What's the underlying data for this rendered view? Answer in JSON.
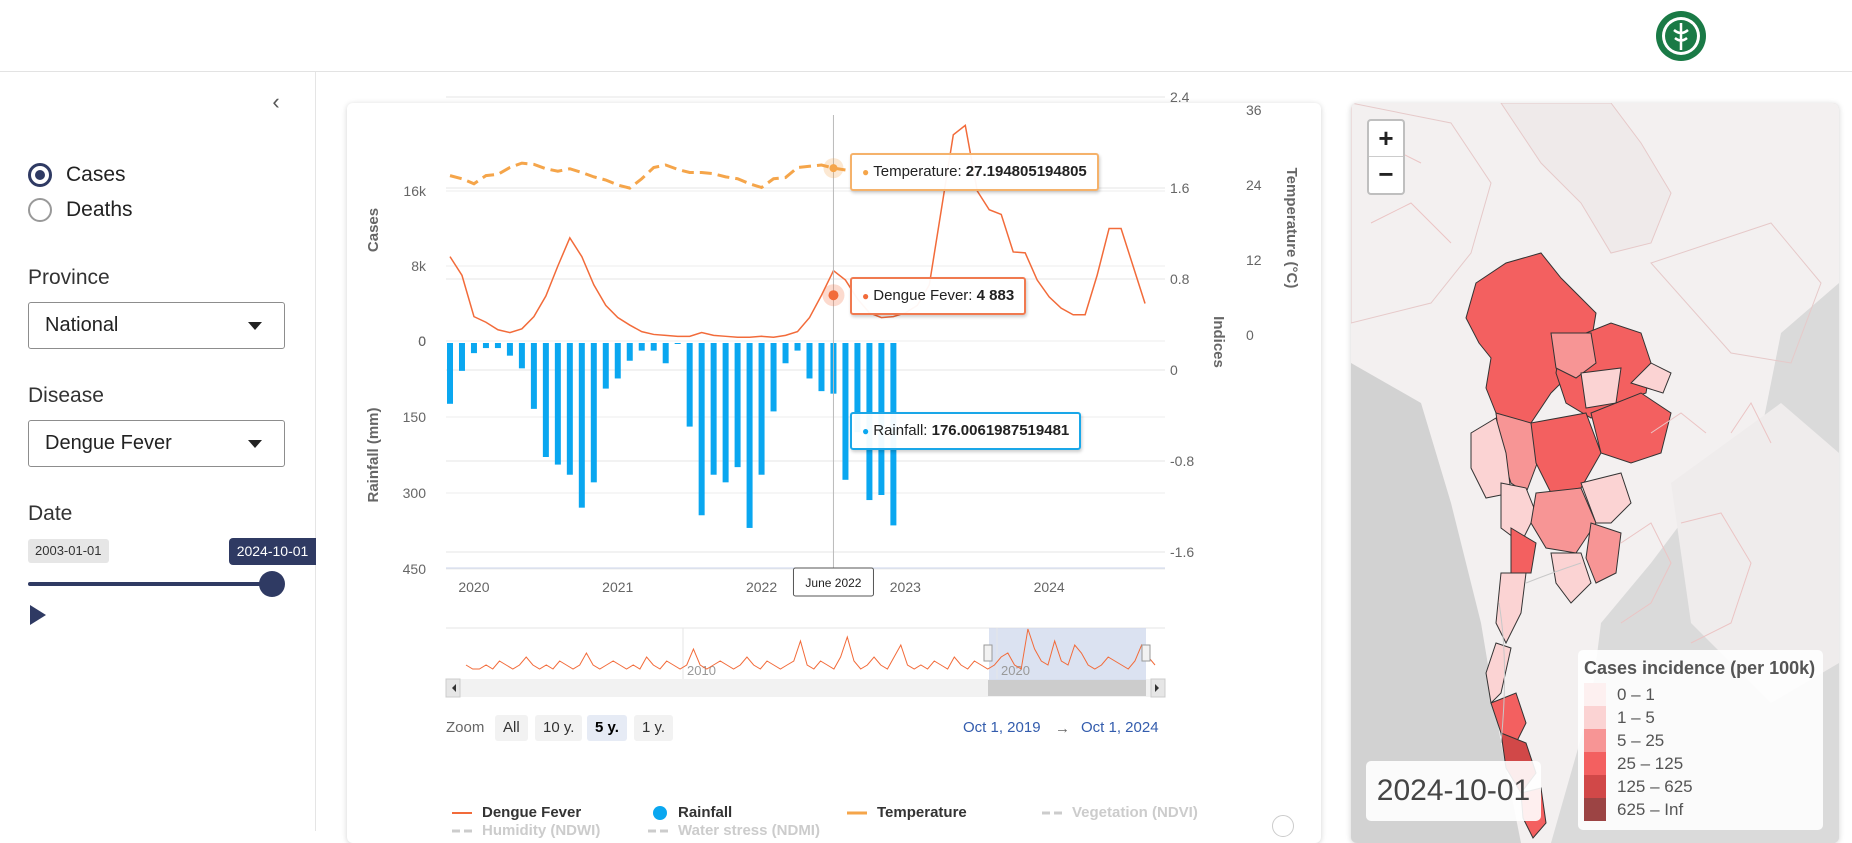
{
  "sidebar": {
    "measure_options": [
      {
        "label": "Cases",
        "selected": true
      },
      {
        "label": "Deaths",
        "selected": false
      }
    ],
    "province_label": "Province",
    "province_value": "National",
    "disease_label": "Disease",
    "disease_value": "Dengue Fever",
    "date_label": "Date",
    "date_min": "2003-01-01",
    "date_current": "2024-10-01",
    "slider_fraction": 1.0
  },
  "chart": {
    "zoom_label": "Zoom",
    "zoom_buttons": [
      "All",
      "10 y.",
      "5 y.",
      "1 y."
    ],
    "zoom_selected": "5 y.",
    "range_from": "Oct 1, 2019",
    "range_arrow": "→",
    "range_to": "Oct 1, 2024",
    "navigator_labels": [
      "2010",
      "2020"
    ],
    "tooltip_temperature": {
      "label": "Temperature: ",
      "value": "27.194805194805"
    },
    "tooltip_dengue": {
      "label": "Dengue Fever: ",
      "value": "4 883"
    },
    "tooltip_rainfall": {
      "label": "Rainfall: ",
      "value": "176.0061987519481"
    },
    "crosshair_label": "June 2022",
    "legend": [
      {
        "label": "Dengue Fever",
        "color": "#f26b3a",
        "symbol": "line",
        "enabled": true
      },
      {
        "label": "Rainfall",
        "color": "#0aa7f0",
        "symbol": "dot",
        "enabled": true
      },
      {
        "label": "Temperature",
        "color": "#f5a54a",
        "symbol": "line",
        "enabled": true
      },
      {
        "label": "Vegetation (NDVI)",
        "color": "#cccccc",
        "symbol": "dash",
        "enabled": false
      },
      {
        "label": "Humidity (NDWI)",
        "color": "#cccccc",
        "symbol": "dash",
        "enabled": false
      },
      {
        "label": "Water stress (NDMI)",
        "color": "#cccccc",
        "symbol": "dash",
        "enabled": false
      }
    ]
  },
  "chart_data": {
    "type": "line",
    "title": "",
    "x_start": "2019-10",
    "x_step": "month",
    "x_ticks": [
      "2020",
      "2021",
      "2022",
      "2023",
      "2024"
    ],
    "x_tick_dates": [
      2020.0,
      2021.0,
      2022.0,
      2023.0,
      2024.0
    ],
    "x_range": [
      2019.75,
      2024.75
    ],
    "cases_axis": {
      "label": "Cases",
      "ticks": [
        "0",
        "8k",
        "16k"
      ],
      "tick_values": [
        0,
        8000,
        16000
      ],
      "range": [
        0,
        24000
      ]
    },
    "rainfall_axis": {
      "label": "Rainfall (mm)",
      "ticks": [
        "0",
        "150",
        "300",
        "450"
      ],
      "tick_values": [
        0,
        150,
        300,
        450
      ],
      "range": [
        0,
        450
      ]
    },
    "indices_axis": {
      "label": "Indices",
      "ticks": [
        "2.4",
        "1.6",
        "0.8",
        "0",
        "-0.8",
        "-1.6"
      ],
      "tick_values": [
        2.4,
        1.6,
        0.8,
        0,
        -0.8,
        -1.6
      ],
      "range": [
        -1.6,
        2.4
      ]
    },
    "temperature_axis": {
      "label": "Temperature (°C)",
      "ticks": [
        "36",
        "24",
        "12",
        "0"
      ],
      "tick_values": [
        36,
        24,
        12,
        0
      ],
      "range": [
        0,
        36
      ]
    },
    "series": [
      {
        "name": "Dengue Fever",
        "values": [
          9000,
          7000,
          2600,
          2000,
          1200,
          900,
          1300,
          2600,
          4800,
          8000,
          11000,
          9000,
          6000,
          3800,
          2500,
          1700,
          1000,
          700,
          600,
          500,
          500,
          900,
          600,
          500,
          400,
          400,
          500,
          400,
          600,
          1000,
          2500,
          4883,
          7500,
          6500,
          4500,
          3000,
          2500,
          2600,
          3000,
          3800,
          6000,
          14000,
          22000,
          23000,
          16000,
          14000,
          13500,
          9500,
          9400,
          6500,
          4700,
          3500,
          2800,
          2800,
          7000,
          12000,
          12000,
          8000,
          4000
        ]
      },
      {
        "name": "Rainfall",
        "values": [
          120,
          55,
          20,
          10,
          10,
          25,
          50,
          130,
          225,
          240,
          260,
          325,
          275,
          90,
          70,
          35,
          15,
          15,
          40,
          0,
          165,
          340,
          260,
          275,
          245,
          365,
          260,
          135,
          40,
          15,
          70,
          95,
          100,
          270,
          176,
          310,
          300,
          360
        ]
      },
      {
        "name": "Temperature",
        "values": [
          25.5,
          25.0,
          24.2,
          25.5,
          25.7,
          26.8,
          27.5,
          27.3,
          26.6,
          26.2,
          26.6,
          26.0,
          25.3,
          24.8,
          24.0,
          23.5,
          25.0,
          26.8,
          27.2,
          26.5,
          26.0,
          26.0,
          25.8,
          25.3,
          25.0,
          24.2,
          23.6,
          25.0,
          25.2,
          26.8,
          27.0,
          27.2,
          26.7,
          26.4
        ]
      }
    ]
  },
  "map": {
    "zoom_in": "+",
    "zoom_out": "−",
    "date": "2024-10-01",
    "legend_title": "Cases incidence (per 100k)",
    "legend_items": [
      {
        "label": "0 – 1",
        "color": "#fdf0f0"
      },
      {
        "label": "1 – 5",
        "color": "#fbd3d3"
      },
      {
        "label": "5 – 25",
        "color": "#f79595"
      },
      {
        "label": "25 – 125",
        "color": "#f36060"
      },
      {
        "label": "125 – 625",
        "color": "#d14848"
      },
      {
        "label": "625 – Inf",
        "color": "#9c4444"
      }
    ]
  }
}
